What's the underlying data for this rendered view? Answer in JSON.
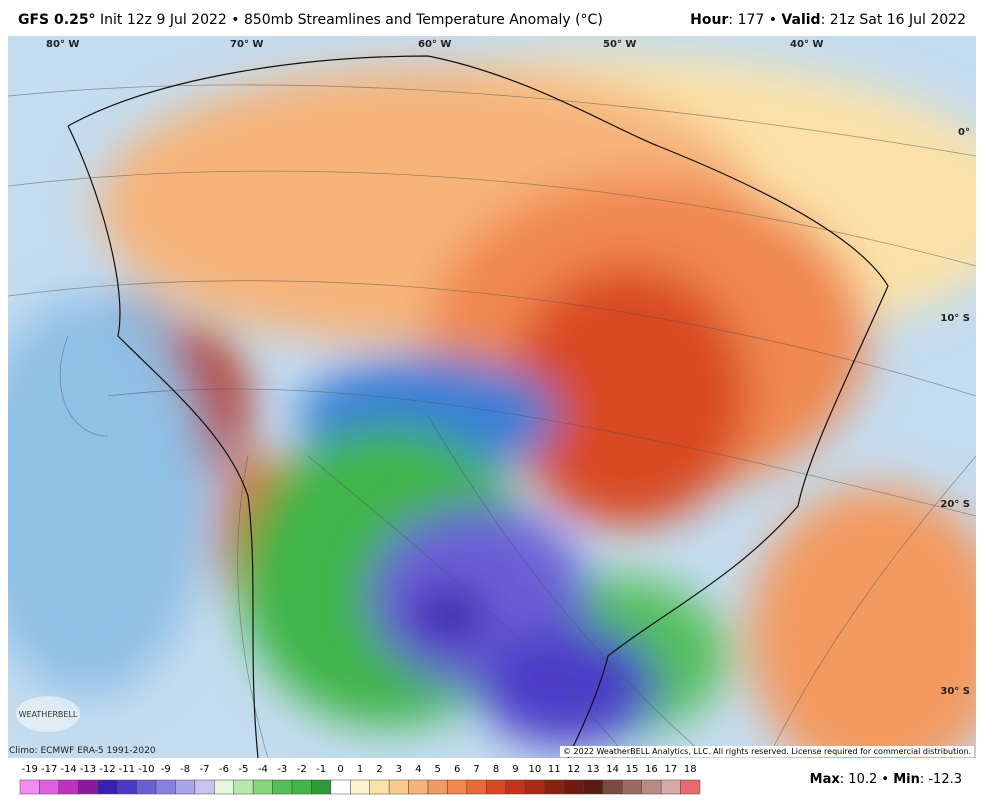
{
  "header": {
    "model": "GFS 0.25°",
    "description": "Init 12z 9 Jul 2022 • 850mb Streamlines and Temperature Anomaly (°C)",
    "hour_label": "Hour",
    "hour": 177,
    "valid_label": "Valid",
    "valid": "21z Sat 16 Jul 2022"
  },
  "map": {
    "lon_labels": [
      "80° W",
      "70° W",
      "60° W",
      "50° W",
      "40° W"
    ],
    "lat_labels": [
      "0°",
      "10° S",
      "20° S",
      "30° S"
    ],
    "logo": "WEATHERBELL"
  },
  "footer": {
    "climo": "Climo: ECMWF ERA-5 1991-2020",
    "copyright": "© 2022 WeatherBELL Analytics, LLC. All rights reserved. License required for commercial distribution."
  },
  "colorbar": {
    "labels": [
      -19,
      -17,
      -14,
      -13,
      -12,
      -11,
      -10,
      -9,
      -8,
      -7,
      -6,
      -5,
      -4,
      -3,
      -2,
      -1,
      0,
      1,
      2,
      3,
      4,
      5,
      6,
      7,
      8,
      9,
      10,
      11,
      12,
      13,
      14,
      15,
      16,
      17,
      18
    ],
    "colors": [
      "#f08cf0",
      "#e060e0",
      "#c030c0",
      "#8a1aa0",
      "#3a1fb0",
      "#4b3cc8",
      "#6b5ed6",
      "#8a80e0",
      "#aaa4ea",
      "#c8c4f0",
      "#e6f6e0",
      "#b8e8b0",
      "#86d67e",
      "#54c05a",
      "#3fb54a",
      "#2e9a3a",
      "#ffffff",
      "#fdf3cc",
      "#fbe2a8",
      "#f8cc8c",
      "#f6b47a",
      "#f39a60",
      "#f08850",
      "#e86a36",
      "#d94a20",
      "#c43418",
      "#a82a14",
      "#8a2010",
      "#6e1a0e",
      "#5a1a14",
      "#7a4a40",
      "#9a6a60",
      "#b88a84",
      "#d6aaa8",
      "#e86a70"
    ]
  },
  "stats": {
    "max_label": "Max",
    "max": 10.2,
    "min_label": "Min",
    "min": -12.3
  }
}
